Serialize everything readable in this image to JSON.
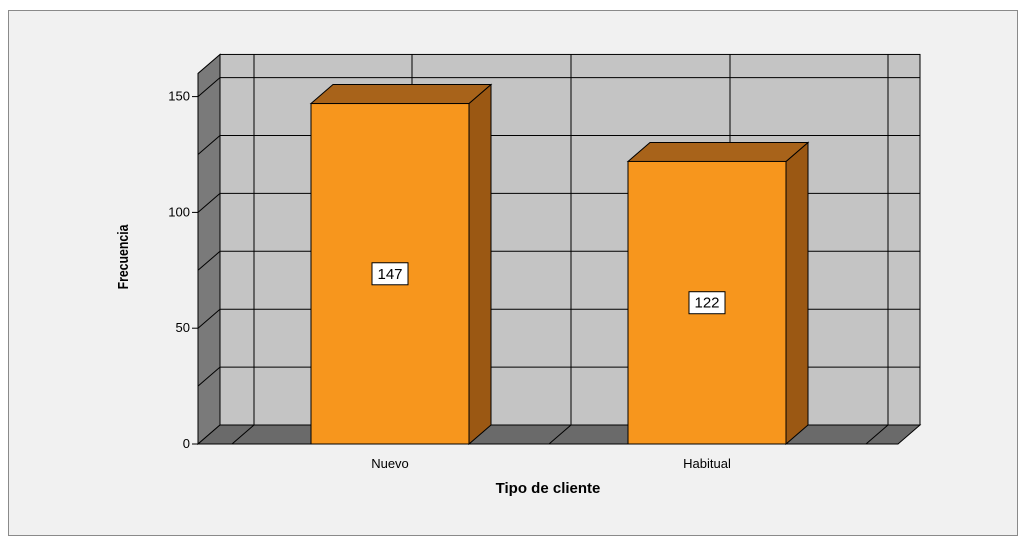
{
  "chart_data": {
    "type": "bar",
    "categories": [
      "Nuevo",
      "Habitual"
    ],
    "values": [
      147,
      122
    ],
    "data_labels": [
      "147",
      "122"
    ],
    "title": "",
    "xlabel": "Tipo de cliente",
    "ylabel": "Frecuencia",
    "ylim": [
      0,
      160
    ],
    "yticks": [
      0,
      50,
      100,
      150
    ],
    "ytick_labels": [
      "0",
      "50",
      "100",
      "150"
    ],
    "grid": true,
    "legend": "none",
    "colors": {
      "bar_front": "#f7961d",
      "bar_side": "#9b5813",
      "bar_top": "#a8631a",
      "plot_back": "#c4c4c4",
      "plot_floor": "#6a6a6a",
      "plot_leftwall": "#7a7a7a",
      "frame_bg": "#f1f1f1"
    }
  }
}
